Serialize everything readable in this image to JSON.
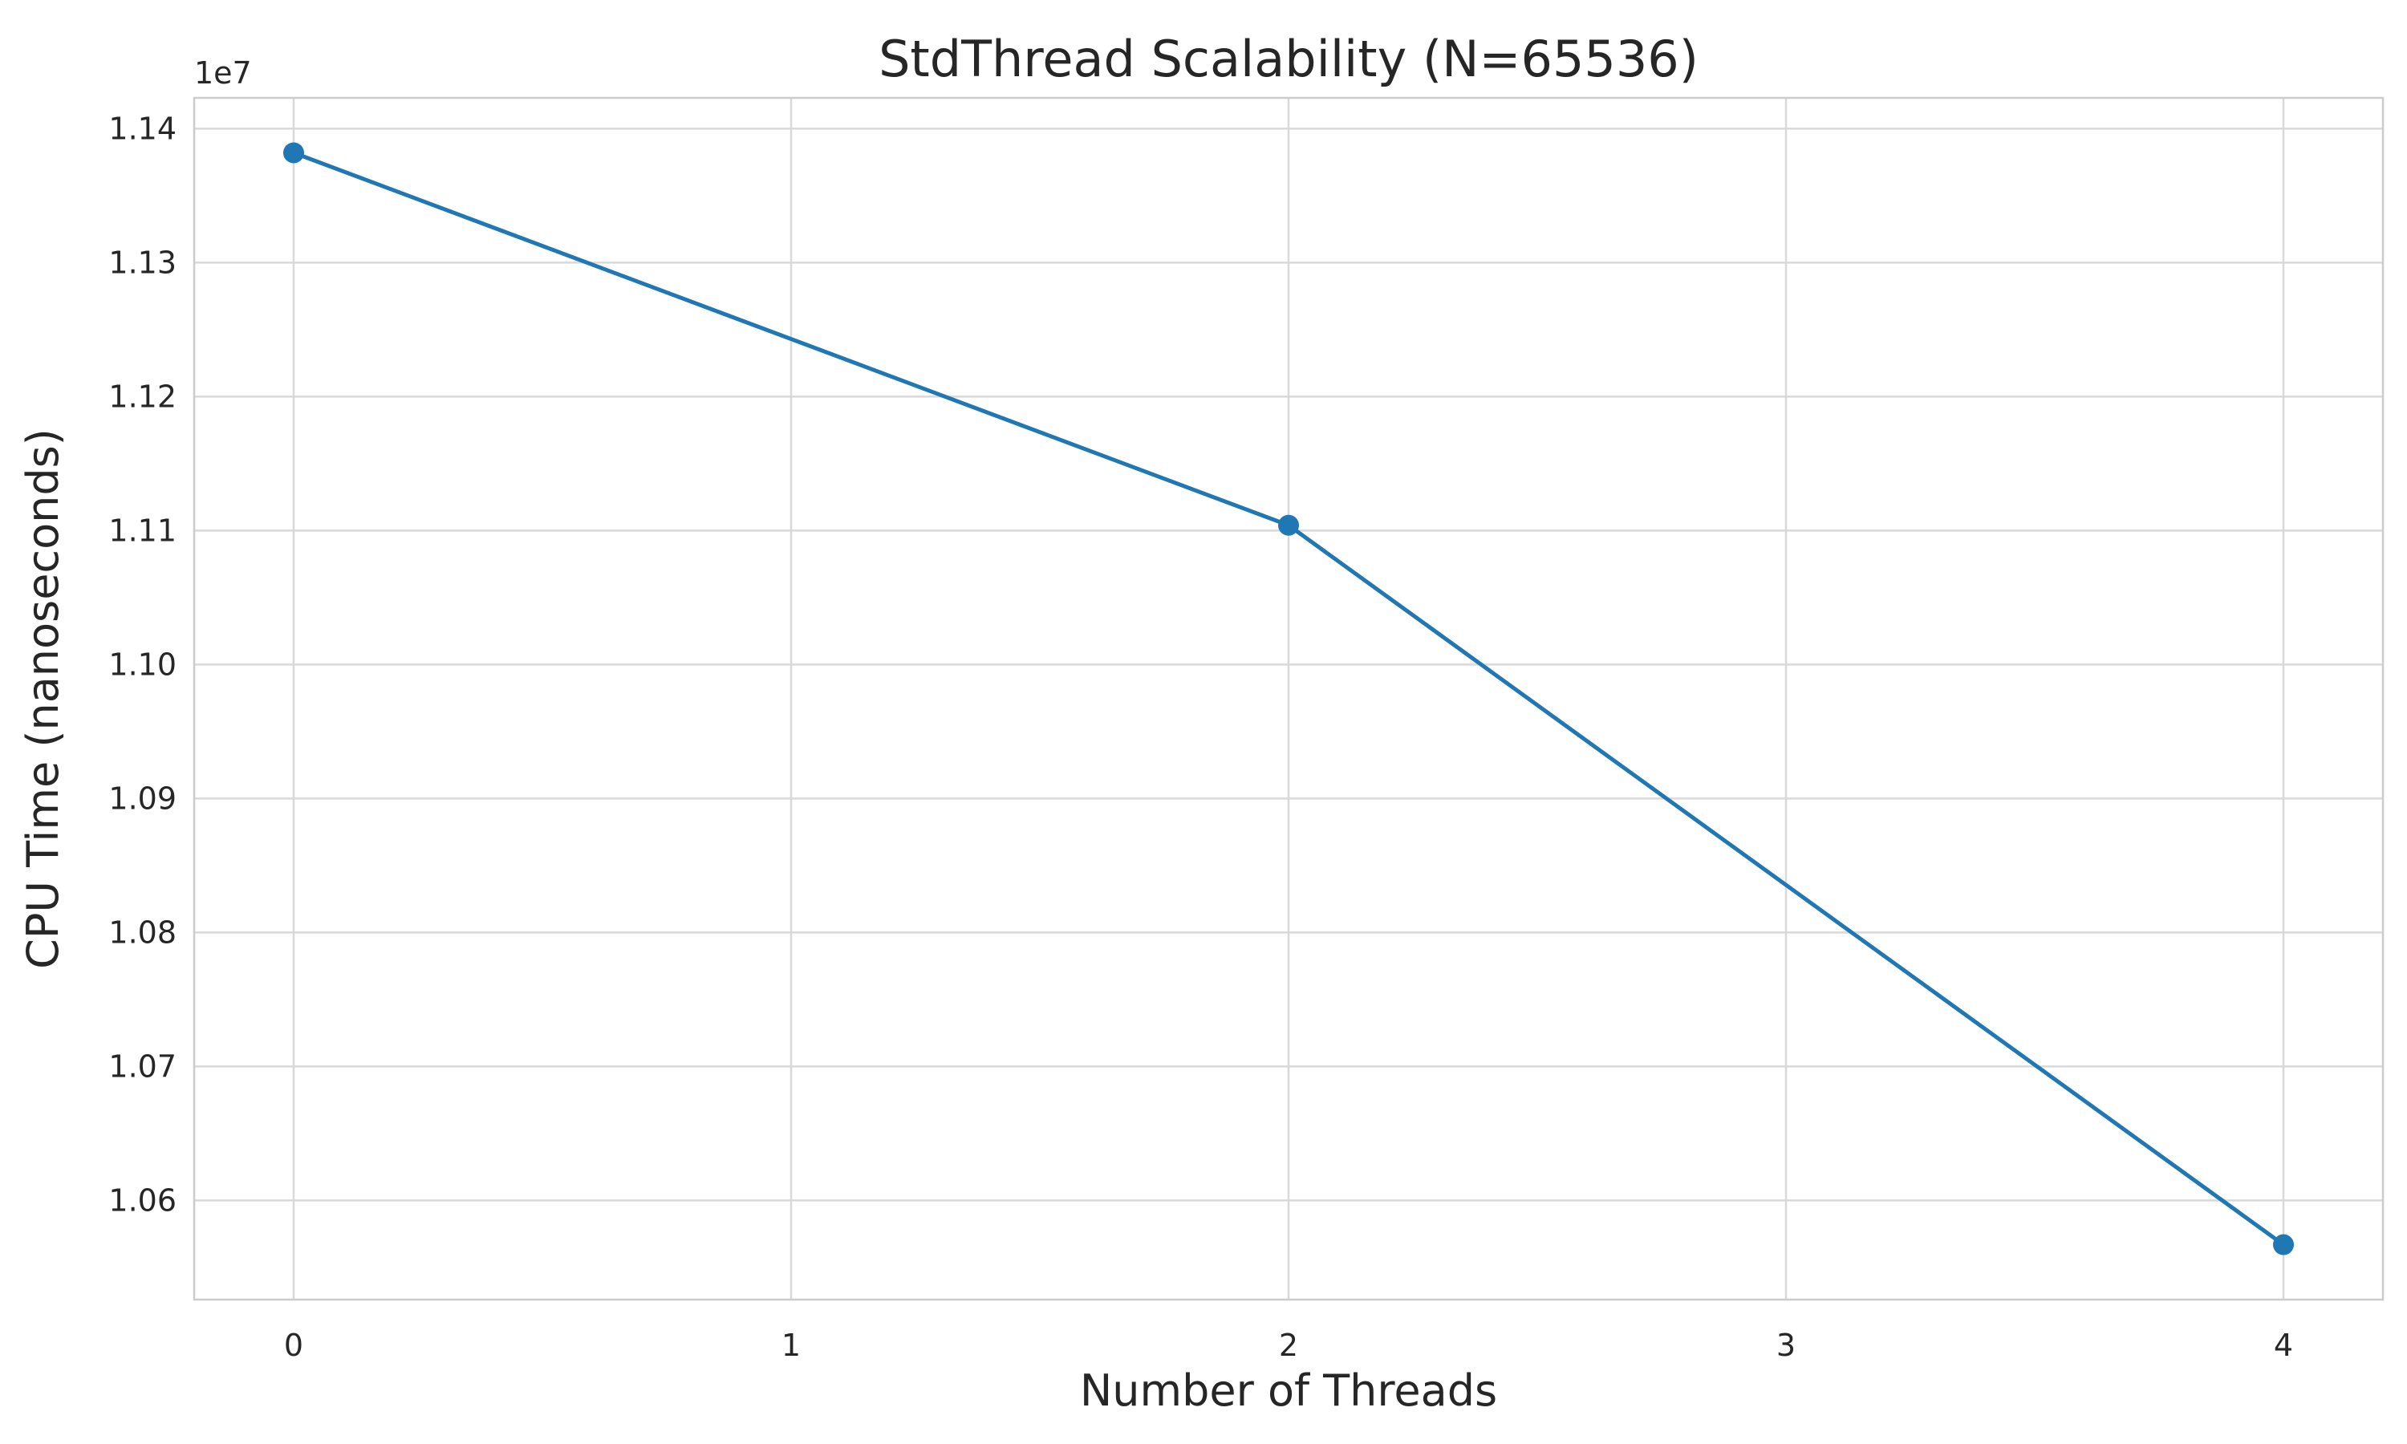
{
  "chart_data": {
    "type": "line",
    "title": "StdThread Scalability (N=65536)",
    "xlabel": "Number of Threads",
    "ylabel": "CPU Time (nanoseconds)",
    "y_offset_label": "1e7",
    "xlim": [
      -0.2,
      4.2
    ],
    "ylim": [
      10526000,
      11423000
    ],
    "x_ticks": [
      0,
      1,
      2,
      3,
      4
    ],
    "x_tick_labels": [
      "0",
      "1",
      "2",
      "3",
      "4"
    ],
    "y_ticks": [
      10600000,
      10700000,
      10800000,
      10900000,
      11000000,
      11100000,
      11200000,
      11300000,
      11400000
    ],
    "y_tick_labels": [
      "1.06",
      "1.07",
      "1.08",
      "1.09",
      "1.10",
      "1.11",
      "1.12",
      "1.13",
      "1.14"
    ],
    "grid": true,
    "legend": "none",
    "series": [
      {
        "color": "#1f77b4",
        "marker": "circle",
        "x": [
          0,
          2,
          4
        ],
        "y": [
          11382000,
          11104000,
          10567000
        ]
      }
    ]
  }
}
